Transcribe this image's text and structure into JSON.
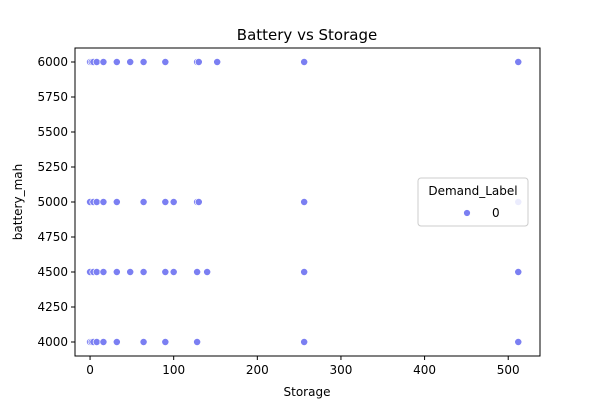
{
  "chart_data": {
    "type": "scatter",
    "title": "Battery vs Storage",
    "xlabel": "Storage",
    "ylabel": "battery_mah",
    "xlim": [
      -18,
      538
    ],
    "ylim": [
      3900,
      6100
    ],
    "xticks": [
      0,
      100,
      200,
      300,
      400,
      500
    ],
    "yticks": [
      4000,
      4250,
      4500,
      4750,
      5000,
      5250,
      5500,
      5750,
      6000
    ],
    "grid": false,
    "legend": {
      "title": "Demand_Label",
      "placement": "right",
      "entries": [
        {
          "label": "0",
          "color": "#7b7ff2"
        }
      ]
    },
    "series": [
      {
        "color": "#7b7ff2",
        "points": [
          [
            0,
            6000
          ],
          [
            2,
            6000
          ],
          [
            4,
            6000
          ],
          [
            8,
            6000
          ],
          [
            16,
            6000
          ],
          [
            32,
            6000
          ],
          [
            48,
            6000
          ],
          [
            64,
            6000
          ],
          [
            90,
            6000
          ],
          [
            128,
            6000
          ],
          [
            130,
            6000
          ],
          [
            152,
            6000
          ],
          [
            256,
            6000
          ],
          [
            512,
            6000
          ],
          [
            0,
            5000
          ],
          [
            4,
            5000
          ],
          [
            8,
            5000
          ],
          [
            16,
            5000
          ],
          [
            32,
            5000
          ],
          [
            64,
            5000
          ],
          [
            90,
            5000
          ],
          [
            100,
            5000
          ],
          [
            128,
            5000
          ],
          [
            130,
            5000
          ],
          [
            256,
            5000
          ],
          [
            512,
            5000
          ],
          [
            0,
            4500
          ],
          [
            4,
            4500
          ],
          [
            8,
            4500
          ],
          [
            16,
            4500
          ],
          [
            32,
            4500
          ],
          [
            48,
            4500
          ],
          [
            64,
            4500
          ],
          [
            90,
            4500
          ],
          [
            100,
            4500
          ],
          [
            128,
            4500
          ],
          [
            140,
            4500
          ],
          [
            256,
            4500
          ],
          [
            512,
            4500
          ],
          [
            0,
            4000
          ],
          [
            2,
            4000
          ],
          [
            4,
            4000
          ],
          [
            8,
            4000
          ],
          [
            16,
            4000
          ],
          [
            32,
            4000
          ],
          [
            64,
            4000
          ],
          [
            90,
            4000
          ],
          [
            128,
            4000
          ],
          [
            256,
            4000
          ],
          [
            512,
            4000
          ]
        ]
      }
    ]
  }
}
